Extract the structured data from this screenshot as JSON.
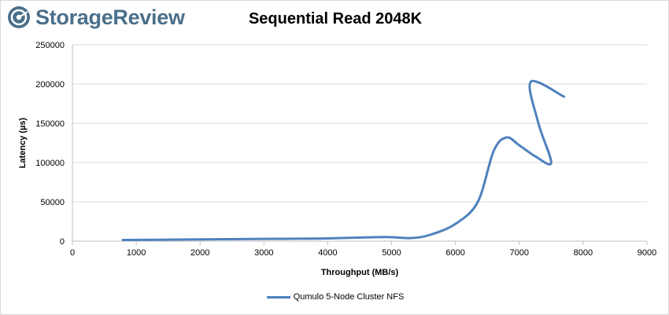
{
  "brand": {
    "name": "StorageReview",
    "logo_icon": "storagereview-logo-icon"
  },
  "colors": {
    "series": "#4f81bd",
    "gridline": "#d9d9d9",
    "brand": "#4a6f8a"
  },
  "chart_data": {
    "type": "line",
    "title": "Sequential Read 2048K",
    "xlabel": "Throughput (MB/s)",
    "ylabel": "Latency (µs)",
    "xlim": [
      0,
      9000
    ],
    "ylim": [
      0,
      250000
    ],
    "x_ticks": [
      "0",
      "1000",
      "2000",
      "3000",
      "4000",
      "5000",
      "6000",
      "7000",
      "8000",
      "9000"
    ],
    "y_ticks": [
      "0",
      "50000",
      "100000",
      "150000",
      "200000",
      "250000"
    ],
    "grid": true,
    "legend_position": "bottom",
    "series": [
      {
        "name": "Qumulo 5-Node Cluster NFS",
        "x": [
          790,
          1600,
          2400,
          3200,
          4000,
          4900,
          5300,
          5600,
          6000,
          6350,
          6600,
          6800,
          7000,
          7250,
          7500,
          7300,
          7180,
          7700
        ],
        "y": [
          1500,
          2000,
          2500,
          3000,
          3500,
          5200,
          4000,
          8000,
          22000,
          50000,
          115000,
          132000,
          122000,
          108000,
          100000,
          150000,
          203000,
          184000
        ]
      }
    ]
  }
}
